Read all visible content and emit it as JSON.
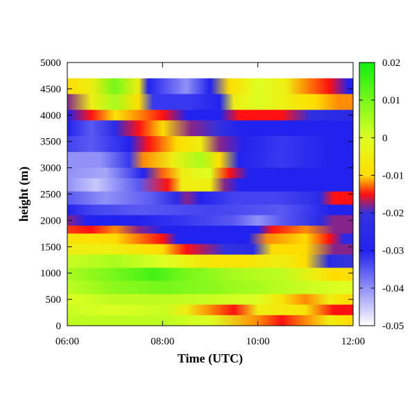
{
  "chart_data": {
    "type": "heatmap",
    "title": "",
    "xlabel": "Time (UTC)",
    "ylabel": "height (m)",
    "x_range_hours": [
      6,
      12
    ],
    "xlim": [
      "06:00",
      "12:00"
    ],
    "ylim": [
      0,
      5000
    ],
    "xticks": [
      {
        "value": 6,
        "label": "06:00"
      },
      {
        "value": 8,
        "label": "08:00"
      },
      {
        "value": 10,
        "label": "10:00"
      },
      {
        "value": 12,
        "label": "12:00"
      }
    ],
    "yticks": [
      0,
      500,
      1000,
      1500,
      2000,
      2500,
      3000,
      3500,
      4000,
      4500,
      5000
    ],
    "colorbar": {
      "range": [
        -0.05,
        0.02
      ],
      "ticks": [
        "0.02",
        "0.01",
        "0",
        "-0.01",
        "-0.02",
        "-0.03",
        "-0.04",
        "-0.05"
      ],
      "tick_values": [
        0.02,
        0.01,
        0,
        -0.01,
        -0.02,
        -0.03,
        -0.04,
        -0.05
      ],
      "stops": [
        {
          "value": -0.05,
          "color": "#ffffff"
        },
        {
          "value": -0.03,
          "color": "#2222ee"
        },
        {
          "value": -0.02,
          "color": "#3333dd"
        },
        {
          "value": -0.015,
          "color": "#ff1111"
        },
        {
          "value": -0.01,
          "color": "#ffdd00"
        },
        {
          "value": 0.0,
          "color": "#ddff22"
        },
        {
          "value": 0.02,
          "color": "#11ee11"
        }
      ]
    },
    "data_top_m": 4700,
    "layers": [
      {
        "bottom": 4400,
        "top": 4700,
        "segments": [
          [
            6.0,
            -0.01
          ],
          [
            6.5,
            -0.005
          ],
          [
            7.0,
            0.01
          ],
          [
            7.5,
            -0.005
          ],
          [
            7.7,
            -0.03
          ],
          [
            8.5,
            -0.04
          ],
          [
            9.0,
            -0.03
          ],
          [
            9.4,
            -0.01
          ],
          [
            10.0,
            0.0
          ],
          [
            10.6,
            -0.005
          ],
          [
            11.0,
            -0.012
          ],
          [
            11.5,
            -0.015
          ],
          [
            11.9,
            -0.03
          ]
        ]
      },
      {
        "bottom": 4100,
        "top": 4400,
        "segments": [
          [
            6.0,
            -0.018
          ],
          [
            6.5,
            -0.005
          ],
          [
            7.0,
            0.005
          ],
          [
            7.5,
            -0.01
          ],
          [
            7.8,
            -0.032
          ],
          [
            8.6,
            -0.032
          ],
          [
            9.2,
            -0.03
          ],
          [
            9.5,
            -0.005
          ],
          [
            10.0,
            0.0
          ],
          [
            10.6,
            -0.005
          ],
          [
            11.2,
            -0.01
          ],
          [
            11.7,
            -0.012
          ]
        ]
      },
      {
        "bottom": 3900,
        "top": 4100,
        "segments": [
          [
            6.0,
            -0.03
          ],
          [
            6.5,
            -0.015
          ],
          [
            7.0,
            -0.008
          ],
          [
            7.5,
            -0.012
          ],
          [
            8.0,
            -0.015
          ],
          [
            8.5,
            -0.03
          ],
          [
            9.2,
            -0.03
          ],
          [
            9.6,
            -0.015
          ],
          [
            10.5,
            -0.015
          ],
          [
            11.1,
            -0.022
          ],
          [
            11.6,
            -0.025
          ]
        ]
      },
      {
        "bottom": 3600,
        "top": 3900,
        "segments": [
          [
            6.0,
            -0.03
          ],
          [
            6.5,
            -0.035
          ],
          [
            7.0,
            -0.025
          ],
          [
            7.5,
            -0.015
          ],
          [
            8.0,
            -0.01
          ],
          [
            8.6,
            -0.018
          ],
          [
            9.2,
            -0.022
          ],
          [
            9.7,
            -0.03
          ],
          [
            10.5,
            -0.03
          ],
          [
            11.4,
            -0.03
          ]
        ]
      },
      {
        "bottom": 3300,
        "top": 3600,
        "segments": [
          [
            6.0,
            -0.033
          ],
          [
            6.5,
            -0.035
          ],
          [
            7.3,
            -0.03
          ],
          [
            7.7,
            -0.015
          ],
          [
            8.3,
            -0.01
          ],
          [
            8.8,
            -0.005
          ],
          [
            9.2,
            -0.018
          ],
          [
            9.7,
            -0.03
          ],
          [
            10.5,
            -0.032
          ],
          [
            11.5,
            -0.03
          ]
        ]
      },
      {
        "bottom": 3000,
        "top": 3300,
        "segments": [
          [
            6.0,
            -0.04
          ],
          [
            6.7,
            -0.04
          ],
          [
            7.3,
            -0.032
          ],
          [
            7.6,
            -0.012
          ],
          [
            8.2,
            -0.005
          ],
          [
            8.8,
            0.005
          ],
          [
            9.2,
            -0.01
          ],
          [
            9.6,
            -0.03
          ],
          [
            10.5,
            -0.032
          ],
          [
            11.5,
            -0.03
          ]
        ]
      },
      {
        "bottom": 2800,
        "top": 3000,
        "segments": [
          [
            6.0,
            -0.04
          ],
          [
            6.8,
            -0.042
          ],
          [
            7.6,
            -0.03
          ],
          [
            8.0,
            -0.013
          ],
          [
            8.4,
            -0.005
          ],
          [
            9.0,
            0.0
          ],
          [
            9.4,
            -0.015
          ],
          [
            9.8,
            -0.03
          ],
          [
            11.0,
            -0.03
          ]
        ]
      },
      {
        "bottom": 2550,
        "top": 2800,
        "segments": [
          [
            6.0,
            -0.04
          ],
          [
            6.6,
            -0.045
          ],
          [
            7.5,
            -0.035
          ],
          [
            8.1,
            -0.015
          ],
          [
            8.4,
            -0.005
          ],
          [
            9.0,
            -0.005
          ],
          [
            9.3,
            -0.018
          ],
          [
            9.6,
            -0.03
          ],
          [
            11.0,
            -0.03
          ],
          [
            11.7,
            -0.03
          ]
        ]
      },
      {
        "bottom": 2300,
        "top": 2550,
        "segments": [
          [
            6.0,
            -0.035
          ],
          [
            6.8,
            -0.04
          ],
          [
            7.8,
            -0.035
          ],
          [
            8.3,
            -0.025
          ],
          [
            8.5,
            -0.018
          ],
          [
            8.8,
            -0.03
          ],
          [
            9.5,
            -0.033
          ],
          [
            10.5,
            -0.033
          ],
          [
            11.3,
            -0.025
          ],
          [
            11.6,
            -0.015
          ]
        ]
      },
      {
        "bottom": 2100,
        "top": 2300,
        "segments": [
          [
            6.0,
            -0.03
          ],
          [
            6.5,
            -0.033
          ],
          [
            7.5,
            -0.035
          ],
          [
            9.0,
            -0.033
          ],
          [
            10.5,
            -0.035
          ],
          [
            11.5,
            -0.03
          ]
        ]
      },
      {
        "bottom": 1900,
        "top": 2100,
        "segments": [
          [
            6.0,
            -0.018
          ],
          [
            6.4,
            -0.03
          ],
          [
            7.5,
            -0.03
          ],
          [
            8.5,
            -0.032
          ],
          [
            9.5,
            -0.035
          ],
          [
            10.0,
            -0.04
          ],
          [
            10.5,
            -0.035
          ],
          [
            11.3,
            -0.025
          ],
          [
            11.6,
            -0.018
          ]
        ]
      },
      {
        "bottom": 1750,
        "top": 1900,
        "segments": [
          [
            6.0,
            -0.014
          ],
          [
            6.5,
            -0.015
          ],
          [
            7.0,
            -0.012
          ],
          [
            7.5,
            -0.018
          ],
          [
            8.0,
            -0.03
          ],
          [
            9.0,
            -0.03
          ],
          [
            10.0,
            -0.03
          ],
          [
            10.3,
            -0.015
          ],
          [
            11.0,
            -0.012
          ],
          [
            11.6,
            -0.018
          ]
        ]
      },
      {
        "bottom": 1550,
        "top": 1750,
        "segments": [
          [
            6.0,
            -0.008
          ],
          [
            7.0,
            -0.01
          ],
          [
            8.0,
            -0.015
          ],
          [
            8.3,
            -0.03
          ],
          [
            9.0,
            -0.03
          ],
          [
            9.8,
            -0.03
          ],
          [
            10.2,
            -0.012
          ],
          [
            11.0,
            -0.01
          ],
          [
            11.5,
            -0.015
          ],
          [
            11.8,
            -0.025
          ]
        ]
      },
      {
        "bottom": 1350,
        "top": 1550,
        "segments": [
          [
            6.0,
            -0.005
          ],
          [
            7.0,
            -0.005
          ],
          [
            8.0,
            -0.01
          ],
          [
            8.5,
            -0.015
          ],
          [
            9.3,
            -0.02
          ],
          [
            9.9,
            -0.025
          ],
          [
            10.3,
            -0.01
          ],
          [
            11.0,
            -0.01
          ],
          [
            11.6,
            -0.018
          ]
        ]
      },
      {
        "bottom": 1100,
        "top": 1350,
        "segments": [
          [
            6.0,
            0.002
          ],
          [
            7.0,
            0.005
          ],
          [
            8.0,
            0.0
          ],
          [
            9.0,
            -0.008
          ],
          [
            9.8,
            -0.008
          ],
          [
            10.5,
            -0.005
          ],
          [
            11.0,
            -0.01
          ],
          [
            11.5,
            -0.025
          ],
          [
            11.8,
            -0.02
          ]
        ]
      },
      {
        "bottom": 850,
        "top": 1100,
        "segments": [
          [
            6.0,
            0.005
          ],
          [
            7.0,
            0.01
          ],
          [
            7.8,
            0.015
          ],
          [
            8.5,
            0.01
          ],
          [
            9.5,
            0.005
          ],
          [
            10.5,
            0.003
          ],
          [
            11.2,
            -0.005
          ],
          [
            11.6,
            -0.01
          ]
        ]
      },
      {
        "bottom": 600,
        "top": 850,
        "segments": [
          [
            6.0,
            0.003
          ],
          [
            7.0,
            0.008
          ],
          [
            8.0,
            0.01
          ],
          [
            9.0,
            0.008
          ],
          [
            10.0,
            0.005
          ],
          [
            11.0,
            0.002
          ],
          [
            11.7,
            0.0
          ]
        ]
      },
      {
        "bottom": 400,
        "top": 600,
        "segments": [
          [
            6.0,
            0.0
          ],
          [
            7.0,
            0.003
          ],
          [
            8.0,
            0.003
          ],
          [
            9.0,
            0.002
          ],
          [
            10.0,
            0.0
          ],
          [
            10.5,
            -0.008
          ],
          [
            11.0,
            -0.012
          ],
          [
            11.5,
            -0.005
          ],
          [
            11.9,
            -0.01
          ]
        ]
      },
      {
        "bottom": 200,
        "top": 400,
        "segments": [
          [
            6.0,
            0.002
          ],
          [
            7.0,
            0.0
          ],
          [
            8.0,
            0.002
          ],
          [
            8.5,
            -0.005
          ],
          [
            9.0,
            -0.012
          ],
          [
            9.5,
            -0.015
          ],
          [
            10.0,
            -0.005
          ],
          [
            11.0,
            -0.008
          ],
          [
            11.6,
            -0.015
          ]
        ]
      },
      {
        "bottom": 0,
        "top": 200,
        "segments": [
          [
            6.0,
            0.003
          ],
          [
            7.0,
            0.003
          ],
          [
            8.0,
            0.003
          ],
          [
            9.0,
            0.0
          ],
          [
            10.0,
            -0.012
          ],
          [
            10.5,
            -0.015
          ],
          [
            11.0,
            -0.012
          ],
          [
            11.5,
            -0.005
          ],
          [
            11.9,
            -0.01
          ]
        ]
      }
    ]
  }
}
